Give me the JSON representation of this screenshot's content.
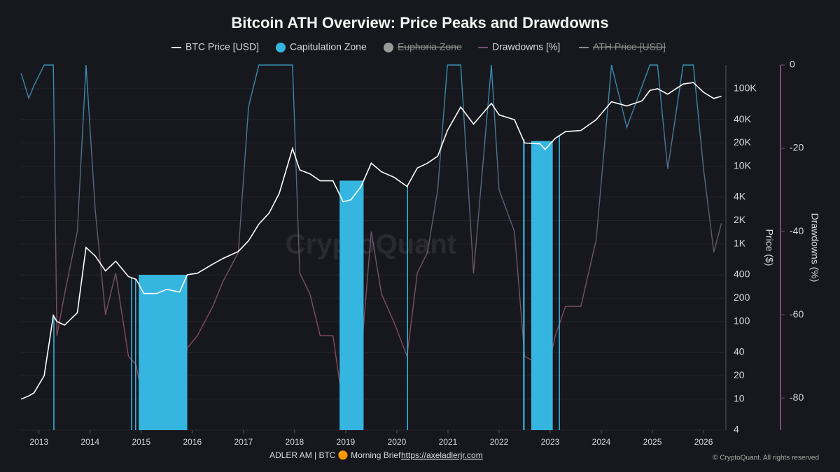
{
  "chart_data": {
    "type": "line",
    "title": "Bitcoin ATH Overview: Price Peaks and Drawdowns",
    "y_label": "Price ($)",
    "y2_label": "Drawdowns (%)",
    "watermark": "CryptoQuant",
    "footer_left": "ADLER AM | BTC 🟠 Morning Brief",
    "footer_link": "https://axeladlerjr.com",
    "footer_right": "© CryptoQuant. All rights reserved",
    "log_y": true,
    "grid": true,
    "xlim": [
      2012.62,
      2026.41
    ],
    "xticks": [
      2013,
      2014,
      2015,
      2016,
      2017,
      2018,
      2019,
      2020,
      2021,
      2022,
      2023,
      2024,
      2025,
      2026
    ],
    "ylim": [
      4,
      202000
    ],
    "yticks": [
      4,
      10,
      20,
      40,
      100,
      200,
      400,
      {
        "value": 1000,
        "label": "1K"
      },
      {
        "value": 2000,
        "label": "2K"
      },
      {
        "value": 4000,
        "label": "4K"
      },
      {
        "value": 10000,
        "label": "10K"
      },
      {
        "value": 20000,
        "label": "20K"
      },
      {
        "value": 40000,
        "label": "40K"
      },
      {
        "value": 100000,
        "label": "100K"
      }
    ],
    "y2lim": [
      -87.7,
      0
    ],
    "y2ticks": [
      0,
      -20,
      -40,
      -60,
      -80
    ],
    "x": [
      2012.65,
      2012.8,
      2012.9,
      2013.1,
      2013.28,
      2013.35,
      2013.5,
      2013.75,
      2013.92,
      2014.1,
      2014.3,
      2014.5,
      2014.75,
      2014.9,
      2015.05,
      2015.3,
      2015.5,
      2015.75,
      2015.9,
      2016.1,
      2016.4,
      2016.6,
      2016.9,
      2017.1,
      2017.3,
      2017.5,
      2017.7,
      2017.96,
      2018.1,
      2018.3,
      2018.5,
      2018.75,
      2018.95,
      2019.1,
      2019.3,
      2019.5,
      2019.7,
      2019.95,
      2020.2,
      2020.4,
      2020.6,
      2020.8,
      2020.99,
      2021.25,
      2021.5,
      2021.85,
      2022.0,
      2022.3,
      2022.5,
      2022.8,
      2022.9,
      2023.1,
      2023.3,
      2023.6,
      2023.9,
      2024.2,
      2024.5,
      2024.8,
      2024.95,
      2025.1,
      2025.3,
      2025.6,
      2025.8,
      2026.0,
      2026.2,
      2026.35
    ],
    "series": [
      {
        "name": "BTC Price [USD]",
        "color": "#ffffff",
        "values": [
          10,
          11,
          12,
          20,
          120,
          100,
          90,
          130,
          900,
          700,
          450,
          600,
          380,
          350,
          230,
          230,
          260,
          240,
          400,
          420,
          550,
          650,
          800,
          1100,
          1800,
          2500,
          4500,
          17000,
          9000,
          8000,
          6500,
          6500,
          3500,
          3700,
          5500,
          11000,
          8500,
          7200,
          5500,
          9500,
          11000,
          13500,
          29000,
          58000,
          35000,
          65000,
          46000,
          40000,
          20000,
          19500,
          16500,
          23000,
          28000,
          29000,
          40000,
          68000,
          60000,
          70000,
          95000,
          100000,
          85000,
          115000,
          120000,
          90000,
          75000,
          80000
        ]
      },
      {
        "name": "Drawdowns [%]",
        "color": "#7a4a7e",
        "axis": "y2",
        "values": [
          -2,
          -8,
          -5,
          0,
          0,
          -65,
          -55,
          -40,
          0,
          -35,
          -60,
          -50,
          -70,
          -72,
          -82,
          -80,
          -78,
          -80,
          -68,
          -65,
          -58,
          -52,
          -45,
          -10,
          0,
          0,
          0,
          0,
          -50,
          -55,
          -65,
          -65,
          -82,
          -80,
          -70,
          -40,
          -55,
          -62,
          -70,
          -50,
          -45,
          -30,
          0,
          0,
          -50,
          0,
          -30,
          -40,
          -70,
          -72,
          -76,
          -65,
          -58,
          -58,
          -42,
          0,
          -15,
          -5,
          0,
          0,
          -25,
          0,
          0,
          -25,
          -45,
          -38
        ]
      }
    ],
    "zones": {
      "name": "Capitulation Zone",
      "color": "#35b6e0",
      "ranges": [
        [
          2013.28,
          2013.295
        ],
        [
          2014.8,
          2014.82
        ],
        [
          2014.88,
          2014.9
        ],
        [
          2014.95,
          2015.9
        ],
        [
          2018.88,
          2019.35
        ],
        [
          2020.2,
          2020.215
        ],
        [
          2022.47,
          2022.5
        ],
        [
          2022.63,
          2023.05
        ],
        [
          2023.17,
          2023.185
        ]
      ]
    },
    "hidden_series": [
      {
        "name": "Euphoria Zone",
        "color": "#9a9a9a"
      },
      {
        "name": "ATH Price [USD]",
        "color": "#8a8a8a"
      }
    ]
  }
}
